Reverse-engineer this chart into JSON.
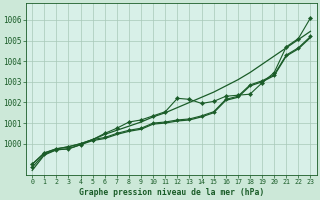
{
  "title": "Graphe pression niveau de la mer (hPa)",
  "bg_color": "#cce8d8",
  "plot_bg_color": "#d8f0e8",
  "grid_color": "#a8c8b8",
  "line_color": "#1a5c28",
  "text_color": "#1a5c28",
  "xlim": [
    -0.5,
    23.5
  ],
  "ylim": [
    998.5,
    1006.8
  ],
  "xticks": [
    0,
    1,
    2,
    3,
    4,
    5,
    6,
    7,
    8,
    9,
    10,
    11,
    12,
    13,
    14,
    15,
    16,
    17,
    18,
    19,
    20,
    21,
    22,
    23
  ],
  "yticks": [
    1000,
    1001,
    1002,
    1003,
    1004,
    1005,
    1006
  ],
  "series1_smooth": [
    999.0,
    999.55,
    999.75,
    999.85,
    1000.0,
    1000.2,
    1000.45,
    1000.65,
    1000.85,
    1001.05,
    1001.3,
    1001.5,
    1001.75,
    1002.0,
    1002.25,
    1002.5,
    1002.8,
    1003.1,
    1003.45,
    1003.85,
    1004.25,
    1004.65,
    1005.05,
    1005.45
  ],
  "series2_markers": [
    999.0,
    999.55,
    999.75,
    999.85,
    1000.0,
    1000.2,
    1000.5,
    1000.75,
    1001.05,
    1001.15,
    1001.35,
    1001.55,
    1002.2,
    1002.15,
    1001.95,
    1002.05,
    1002.3,
    1002.35,
    1002.4,
    1002.95,
    1003.45,
    1004.7,
    1005.1,
    1006.1
  ],
  "series3_markers": [
    998.85,
    999.5,
    999.7,
    999.75,
    999.95,
    1000.2,
    1000.3,
    1000.5,
    1000.65,
    1000.75,
    1001.0,
    1001.05,
    1001.15,
    1001.2,
    1001.35,
    1001.55,
    1002.15,
    1002.3,
    1002.85,
    1003.05,
    1003.35,
    1004.3,
    1004.65,
    1005.2
  ],
  "series4_smooth": [
    998.7,
    999.45,
    999.7,
    999.75,
    999.95,
    1000.15,
    1000.25,
    1000.45,
    1000.6,
    1000.7,
    1000.95,
    1001.0,
    1001.1,
    1001.15,
    1001.3,
    1001.5,
    1002.1,
    1002.25,
    1002.8,
    1003.0,
    1003.3,
    1004.25,
    1004.6,
    1005.15
  ]
}
